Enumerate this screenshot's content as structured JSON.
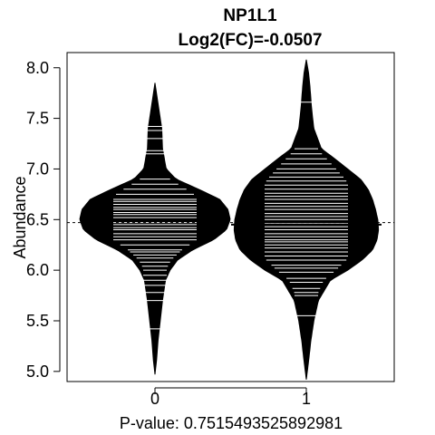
{
  "chart_data": {
    "type": "beanplot",
    "title": "NP1L1",
    "subtitle": "Log2(FC)=-0.0507",
    "ylabel": "Abundance",
    "xlabel": "P-value: 0.7515493525892981",
    "ylim": [
      4.9,
      8.15
    ],
    "yticks": [
      5.0,
      5.5,
      6.0,
      6.5,
      7.0,
      7.5,
      8.0
    ],
    "ytick_labels": [
      "5.0",
      "5.5",
      "6.0",
      "6.5",
      "7.0",
      "7.5",
      "8.0"
    ],
    "categories": [
      "0",
      "1"
    ],
    "overall_mean": 6.47,
    "groups": [
      {
        "name": "0",
        "mean": 6.5,
        "range": [
          4.97,
          7.85
        ],
        "density": [
          [
            4.97,
            0.0
          ],
          [
            5.1,
            0.02
          ],
          [
            5.3,
            0.04
          ],
          [
            5.5,
            0.07
          ],
          [
            5.7,
            0.1
          ],
          [
            5.9,
            0.14
          ],
          [
            6.0,
            0.2
          ],
          [
            6.1,
            0.3
          ],
          [
            6.2,
            0.5
          ],
          [
            6.3,
            0.78
          ],
          [
            6.4,
            0.95
          ],
          [
            6.5,
            1.0
          ],
          [
            6.6,
            0.97
          ],
          [
            6.7,
            0.86
          ],
          [
            6.8,
            0.58
          ],
          [
            6.9,
            0.28
          ],
          [
            7.0,
            0.15
          ],
          [
            7.2,
            0.1
          ],
          [
            7.4,
            0.09
          ],
          [
            7.5,
            0.07
          ],
          [
            7.6,
            0.05
          ],
          [
            7.75,
            0.02
          ],
          [
            7.85,
            0.0
          ]
        ],
        "observations": [
          5.42,
          5.7,
          5.78,
          5.85,
          5.9,
          5.95,
          6.0,
          6.04,
          6.08,
          6.12,
          6.15,
          6.18,
          6.2,
          6.25,
          6.3,
          6.33,
          6.36,
          6.4,
          6.42,
          6.45,
          6.47,
          6.5,
          6.52,
          6.55,
          6.57,
          6.6,
          6.62,
          6.65,
          6.68,
          6.7,
          6.75,
          6.8,
          6.85,
          6.9,
          7.15,
          7.18,
          7.3,
          7.38,
          7.42
        ]
      },
      {
        "name": "1",
        "mean": 6.45,
        "range": [
          4.92,
          8.08
        ],
        "density": [
          [
            4.92,
            0.0
          ],
          [
            5.1,
            0.03
          ],
          [
            5.3,
            0.06
          ],
          [
            5.5,
            0.1
          ],
          [
            5.7,
            0.16
          ],
          [
            5.9,
            0.32
          ],
          [
            6.0,
            0.55
          ],
          [
            6.1,
            0.74
          ],
          [
            6.2,
            0.88
          ],
          [
            6.3,
            0.94
          ],
          [
            6.4,
            0.96
          ],
          [
            6.5,
            0.95
          ],
          [
            6.6,
            0.92
          ],
          [
            6.7,
            0.88
          ],
          [
            6.8,
            0.82
          ],
          [
            6.9,
            0.72
          ],
          [
            7.0,
            0.55
          ],
          [
            7.1,
            0.38
          ],
          [
            7.2,
            0.2
          ],
          [
            7.4,
            0.1
          ],
          [
            7.6,
            0.07
          ],
          [
            7.8,
            0.05
          ],
          [
            7.95,
            0.03
          ],
          [
            8.08,
            0.0
          ]
        ],
        "observations": [
          5.55,
          5.75,
          5.78,
          5.82,
          5.88,
          5.92,
          5.98,
          6.02,
          6.05,
          6.1,
          6.14,
          6.18,
          6.22,
          6.25,
          6.28,
          6.3,
          6.33,
          6.36,
          6.4,
          6.43,
          6.46,
          6.5,
          6.53,
          6.56,
          6.6,
          6.63,
          6.66,
          6.7,
          6.73,
          6.76,
          6.8,
          6.84,
          6.88,
          6.92,
          6.96,
          7.0,
          7.05,
          7.1,
          7.15,
          7.2,
          7.66
        ]
      }
    ]
  }
}
